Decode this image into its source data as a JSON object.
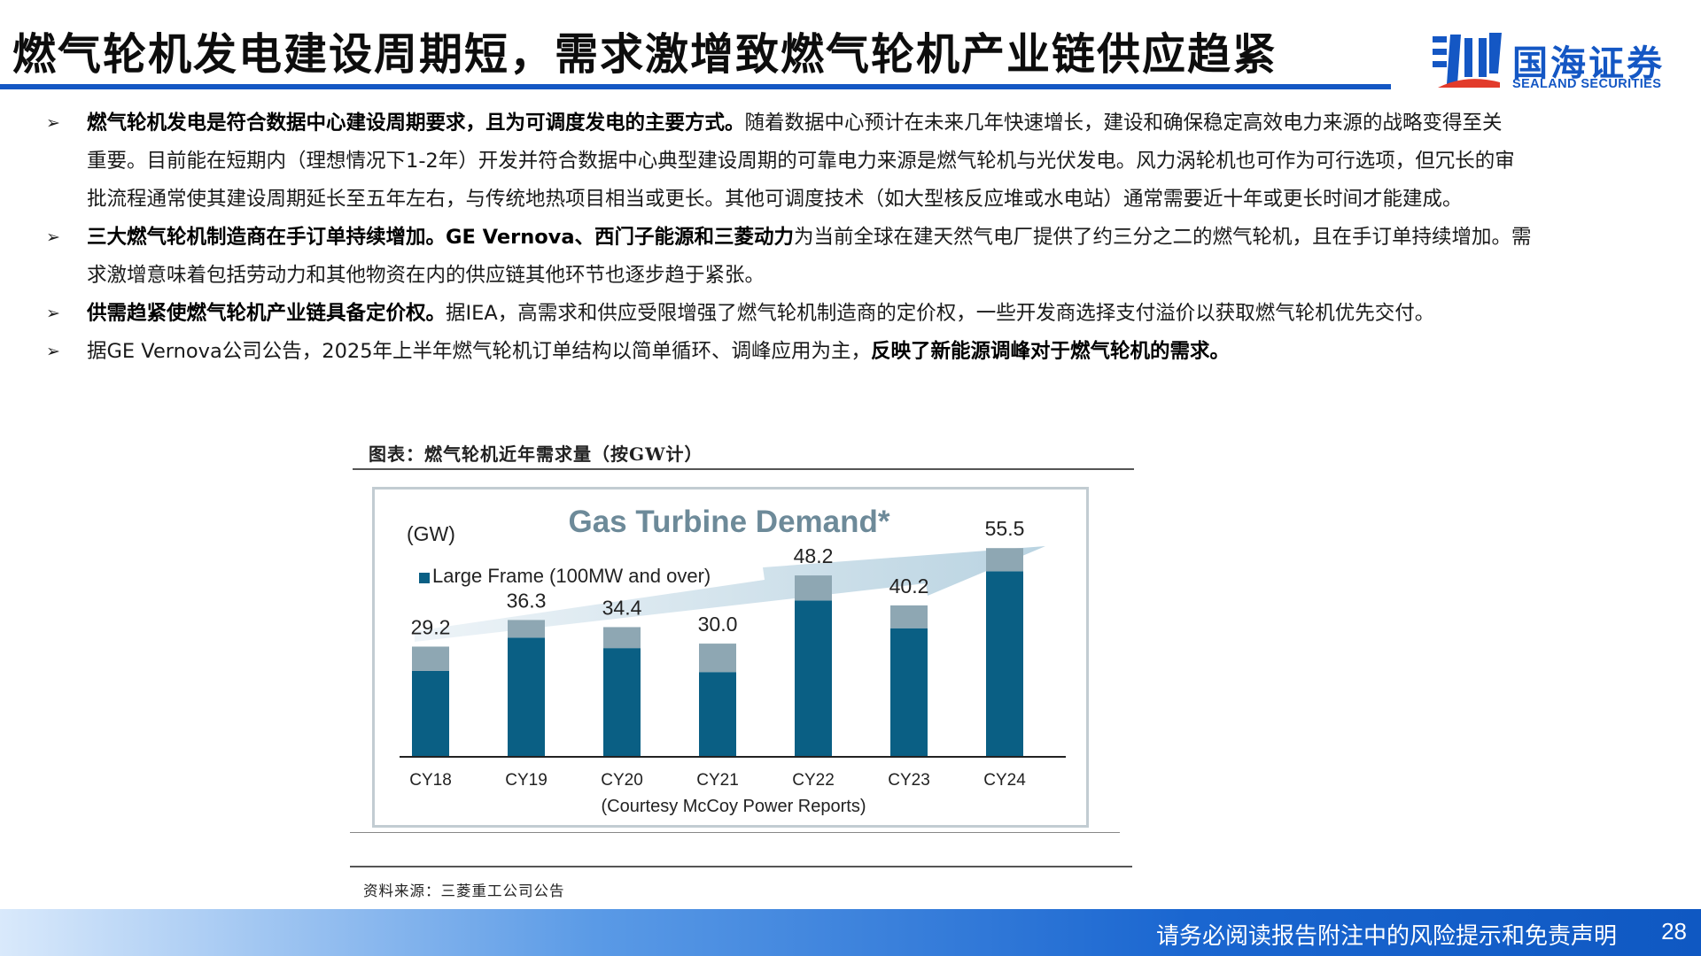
{
  "header": {
    "title": "燃气轮机发电建设周期短，需求激增致燃气轮机产业链供应趋紧",
    "logo_cn": "国海证券",
    "logo_en": "SEALAND SECURITIES"
  },
  "bullets": [
    {
      "bold": "燃气轮机发电是符合数据中心建设周期要求，且为可调度发电的主要方式。",
      "text": "随着数据中心预计在未来几年快速增长，建设和确保稳定高效电力来源的战略变得至关重要。目前能在短期内（理想情况下1-2年）开发并符合数据中心典型建设周期的可靠电力来源是燃气轮机与光伏发电。风力涡轮机也可作为可行选项，但冗长的审批流程通常使其建设周期延长至五年左右，与传统地热项目相当或更长。其他可调度技术（如大型核反应堆或水电站）通常需要近十年或更长时间才能建成。",
      "lines": [
        {
          "b": "燃气轮机发电是符合数据中心建设周期要求，且为可调度发电的主要方式。",
          "t": "随着数据中心预计在未来几年快速增长，建设和确保稳定高效电力来源的战略变得至关"
        },
        {
          "b": "",
          "t": "重要。目前能在短期内（理想情况下1-2年）开发并符合数据中心典型建设周期的可靠电力来源是燃气轮机与光伏发电。风力涡轮机也可作为可行选项，但冗长的审"
        },
        {
          "b": "",
          "t": "批流程通常使其建设周期延长至五年左右，与传统地热项目相当或更长。其他可调度技术（如大型核反应堆或水电站）通常需要近十年或更长时间才能建成。"
        }
      ]
    },
    {
      "lines": [
        {
          "b": "三大燃气轮机制造商在手订单持续增加。GE Vernova、西门子能源和三菱动力",
          "t": "为当前全球在建天然气电厂提供了约三分之二的燃气轮机，且在手订单持续增加。需"
        },
        {
          "b": "",
          "t": "求激增意味着包括劳动力和其他物资在内的供应链其他环节也逐步趋于紧张。"
        }
      ]
    },
    {
      "lines": [
        {
          "b": "供需趋紧使燃气轮机产业链具备定价权。",
          "t": "据IEA，高需求和供应受限增强了燃气轮机制造商的定价权，一些开发商选择支付溢价以获取燃气轮机优先交付。"
        }
      ]
    },
    {
      "lines": [
        {
          "b": "",
          "t": "据GE Vernova公司公告，2025年上半年燃气轮机订单结构以简单循环、调峰应用为主，",
          "b2": "反映了新能源调峰对于燃气轮机的需求。"
        }
      ]
    }
  ],
  "bullet_symbol": "➢",
  "figure": {
    "caption": "图表：燃气轮机近年需求量（按GW计）",
    "source": "资料来源：三菱重工公司公告"
  },
  "chart_data": {
    "type": "bar",
    "title": "Gas Turbine Demand*",
    "unit_label": "(GW)",
    "legend": "Large Frame (100MW and over)",
    "note": "(Courtesy McCoy Power Reports)",
    "categories": [
      "CY18",
      "CY19",
      "CY20",
      "CY21",
      "CY22",
      "CY23",
      "CY24"
    ],
    "totals": [
      29.2,
      36.3,
      34.4,
      30.0,
      48.2,
      40.2,
      55.5
    ],
    "series": [
      {
        "name": "Large Frame (100MW and over)",
        "values": [
          22.7,
          31.6,
          28.8,
          22.4,
          41.5,
          34.1,
          49.3
        ],
        "color": "#0a5f84"
      },
      {
        "values": [
          6.5,
          4.7,
          5.6,
          7.6,
          6.7,
          6.1,
          6.2
        ],
        "color": "#8ea7b3"
      }
    ],
    "total_labels": [
      "29.2",
      "36.3",
      "34.4",
      "30.0",
      "48.2",
      "40.2",
      "55.5"
    ],
    "ylim": [
      0,
      65
    ],
    "grid": false,
    "legend_position": "top-left",
    "trend_arrow": true
  },
  "footer": {
    "note": "请务必阅读报告附注中的风险提示和免责声明",
    "page": "28"
  }
}
